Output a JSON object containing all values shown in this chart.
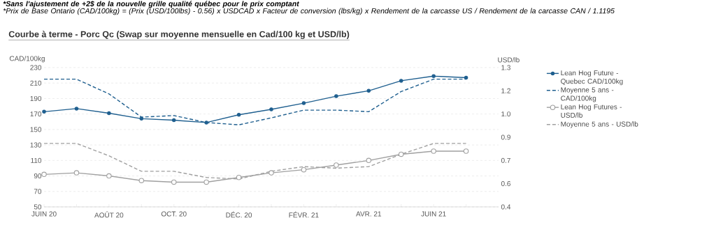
{
  "chart_data": {
    "type": "line",
    "title": "Courbe à terme - Porc Qc (Swap sur moyenne mensuelle en Cad/100 kg et USD/lb)",
    "annotations": [
      "*Sans l'ajustement de +2$ de la nouvelle grille qualité québec pour le prix comptant",
      "*Prix de Base Ontario (CAD/100kg) = (Prix (USD/100lbs) - 0.56) x USDCAD x Facteur de conversion (lbs/kg) x Rendement de la carcasse US / Rendement de la carcasse CAN / 1.1195"
    ],
    "ylabel": "CAD/100kg",
    "y2label": "USD/lb",
    "categories": [
      "JUIN 20",
      null,
      "AOÛT 20",
      null,
      "OCT. 20",
      null,
      "DÉC. 20",
      null,
      "FÉVR. 21",
      null,
      "AVR. 21",
      null,
      "JUIN 21",
      null
    ],
    "series": [
      {
        "name": "Lean Hog Future - Quebec CAD/100kg",
        "color": "#1f5f8f",
        "marker": "circle",
        "line_style": "solid",
        "values": [
          173,
          177,
          171,
          164,
          162,
          159,
          169,
          176,
          184,
          193,
          200,
          213,
          219,
          217
        ]
      },
      {
        "name": "Moyenne 5 ans - CAD/100kg",
        "color": "#1f5f8f",
        "marker": "none",
        "line_style": "dashed",
        "values": [
          215,
          215,
          196,
          166,
          168,
          159,
          156,
          165,
          175,
          175,
          173,
          199,
          215,
          215
        ]
      },
      {
        "name": "Lean Hog Futures - USD/lb",
        "color": "#a0a0a0",
        "marker": "circle",
        "line_style": "solid",
        "axis": "y2",
        "values": [
          0.61,
          0.62,
          0.6,
          0.57,
          0.56,
          0.56,
          0.59,
          0.62,
          0.64,
          0.67,
          0.7,
          0.74,
          0.76,
          0.76
        ]
      },
      {
        "name": "Moyenne 5 ans - USD/lb",
        "color": "#a0a0a0",
        "marker": "none",
        "line_style": "dashed",
        "axis": "y2",
        "values": [
          0.81,
          0.81,
          0.73,
          0.63,
          0.63,
          0.59,
          0.58,
          0.63,
          0.66,
          0.65,
          0.66,
          0.74,
          0.81,
          0.81
        ]
      }
    ],
    "ylim": [
      50,
      230
    ],
    "yticks": [
      50,
      70,
      90,
      110,
      130,
      150,
      170,
      190,
      210,
      230
    ],
    "y2lim": [
      0.4,
      1.3
    ],
    "y2ticks": [
      0.4,
      {
        "value": 0.55,
        "label": "0.6"
      },
      0.7,
      {
        "value": 0.85,
        "label": "0.9"
      },
      {
        "value": 1.0,
        "label": "1.0"
      },
      {
        "value": 1.15,
        "label": "1.2"
      },
      1.3
    ],
    "grid": "y",
    "legend": "right"
  }
}
